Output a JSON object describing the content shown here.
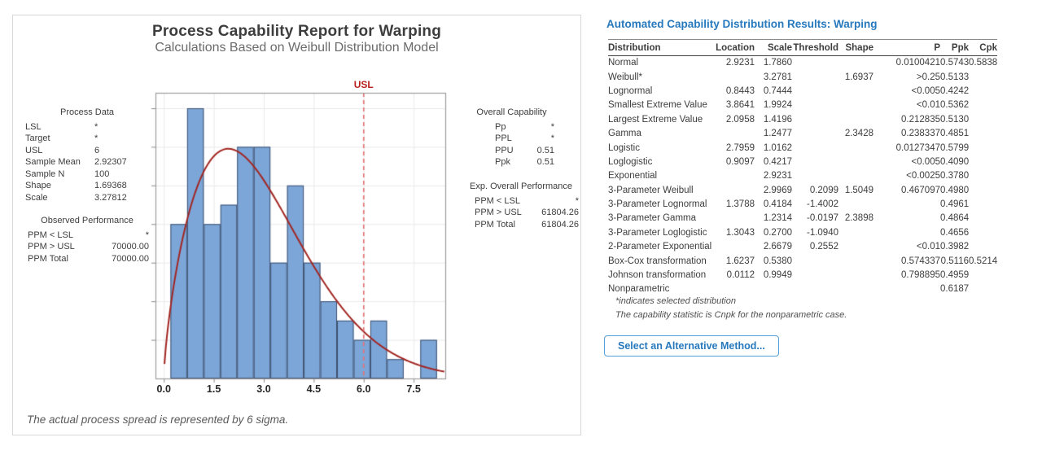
{
  "colors": {
    "accent_blue": "#2779bd",
    "button_border": "#55a0d8",
    "bar_fill": "#7ca6d8",
    "bar_edge": "#3f5170",
    "curve_red": "#a22622",
    "usl_line": "#e57070",
    "usl_text": "#b9211e",
    "grid": "#e9e9e9",
    "plot_border": "#9b9b9b",
    "tick": "#8a8a8a"
  },
  "left_panel": {
    "title": "Process Capability Report for Warping",
    "subtitle": "Calculations Based on Weibull Distribution Model",
    "footnote": "The actual process spread is represented by 6 sigma.",
    "process_data": {
      "header": "Process Data",
      "rows": [
        {
          "label": "LSL",
          "value": "*"
        },
        {
          "label": "Target",
          "value": "*"
        },
        {
          "label": "USL",
          "value": "6"
        },
        {
          "label": "Sample Mean",
          "value": "2.92307"
        },
        {
          "label": "Sample N",
          "value": "100"
        },
        {
          "label": "Shape",
          "value": "1.69368"
        },
        {
          "label": "Scale",
          "value": "3.27812"
        }
      ]
    },
    "observed_performance": {
      "header": "Observed Performance",
      "rows": [
        {
          "label": "PPM < LSL",
          "value": "*"
        },
        {
          "label": "PPM > USL",
          "value": "70000.00"
        },
        {
          "label": "PPM Total",
          "value": "70000.00"
        }
      ]
    },
    "overall_capability": {
      "header": "Overall Capability",
      "rows": [
        {
          "label": "Pp",
          "value": "*"
        },
        {
          "label": "PPL",
          "value": "*"
        },
        {
          "label": "PPU",
          "value": "0.51"
        },
        {
          "label": "Ppk",
          "value": "0.51"
        }
      ]
    },
    "exp_overall_performance": {
      "header": "Exp. Overall Performance",
      "rows": [
        {
          "label": "PPM < LSL",
          "value": "*"
        },
        {
          "label": "PPM > USL",
          "value": "61804.26"
        },
        {
          "label": "PPM Total",
          "value": "61804.26"
        }
      ]
    }
  },
  "chart_data": {
    "type": "bar",
    "subtype": "histogram-with-weibull-fit",
    "bins": {
      "start": 0.2,
      "width": 0.5
    },
    "counts": [
      8,
      14,
      8,
      9,
      12,
      12,
      6,
      10,
      6,
      4,
      3,
      2,
      3,
      1,
      0,
      2
    ],
    "fit_curve": {
      "distribution": "weibull",
      "shape": 1.69368,
      "scale": 3.27812,
      "scale_factor": 50
    },
    "usl": {
      "value": 6,
      "label": "USL"
    },
    "x_ticks": [
      0.0,
      1.5,
      3.0,
      4.5,
      6.0,
      7.5
    ],
    "xlim": [
      -0.25,
      8.45
    ],
    "ylim": [
      0,
      14.8
    ],
    "grid_step": 2,
    "xlabel": "",
    "ylabel": "",
    "legend": "none"
  },
  "results_panel": {
    "title": "Automated Capability Distribution Results: Warping",
    "table": {
      "columns": [
        "Distribution",
        "Location",
        "Scale",
        "Threshold",
        "Shape",
        "P",
        "Ppk",
        "Cpk"
      ],
      "rows": [
        {
          "distribution": "Normal",
          "location": "2.9231",
          "scale": "1.7860",
          "threshold": "",
          "shape": "",
          "p": "0.0100421",
          "ppk": "0.5743",
          "cpk": "0.5838"
        },
        {
          "distribution": "Weibull*",
          "location": "",
          "scale": "3.2781",
          "threshold": "",
          "shape": "1.6937",
          "p": ">0.25",
          "ppk": "0.5133",
          "cpk": ""
        },
        {
          "distribution": "Lognormal",
          "location": "0.8443",
          "scale": "0.7444",
          "threshold": "",
          "shape": "",
          "p": "<0.005",
          "ppk": "0.4242",
          "cpk": ""
        },
        {
          "distribution": "Smallest Extreme Value",
          "location": "3.8641",
          "scale": "1.9924",
          "threshold": "",
          "shape": "",
          "p": "<0.01",
          "ppk": "0.5362",
          "cpk": ""
        },
        {
          "distribution": "Largest Extreme Value",
          "location": "2.0958",
          "scale": "1.4196",
          "threshold": "",
          "shape": "",
          "p": "0.212835",
          "ppk": "0.5130",
          "cpk": ""
        },
        {
          "distribution": "Gamma",
          "location": "",
          "scale": "1.2477",
          "threshold": "",
          "shape": "2.3428",
          "p": "0.238337",
          "ppk": "0.4851",
          "cpk": ""
        },
        {
          "distribution": "Logistic",
          "location": "2.7959",
          "scale": "1.0162",
          "threshold": "",
          "shape": "",
          "p": "0.0127347",
          "ppk": "0.5799",
          "cpk": ""
        },
        {
          "distribution": "Loglogistic",
          "location": "0.9097",
          "scale": "0.4217",
          "threshold": "",
          "shape": "",
          "p": "<0.005",
          "ppk": "0.4090",
          "cpk": ""
        },
        {
          "distribution": "Exponential",
          "location": "",
          "scale": "2.9231",
          "threshold": "",
          "shape": "",
          "p": "<0.0025",
          "ppk": "0.3780",
          "cpk": ""
        },
        {
          "distribution": "3-Parameter Weibull",
          "location": "",
          "scale": "2.9969",
          "threshold": "0.2099",
          "shape": "1.5049",
          "p": "0.467097",
          "ppk": "0.4980",
          "cpk": ""
        },
        {
          "distribution": "3-Parameter Lognormal",
          "location": "1.3788",
          "scale": "0.4184",
          "threshold": "-1.4002",
          "shape": "",
          "p": "",
          "ppk": "0.4961",
          "cpk": ""
        },
        {
          "distribution": "3-Parameter Gamma",
          "location": "",
          "scale": "1.2314",
          "threshold": "-0.0197",
          "shape": "2.3898",
          "p": "",
          "ppk": "0.4864",
          "cpk": ""
        },
        {
          "distribution": "3-Parameter Loglogistic",
          "location": "1.3043",
          "scale": "0.2700",
          "threshold": "-1.0940",
          "shape": "",
          "p": "",
          "ppk": "0.4656",
          "cpk": ""
        },
        {
          "distribution": "2-Parameter Exponential",
          "location": "",
          "scale": "2.6679",
          "threshold": "0.2552",
          "shape": "",
          "p": "<0.01",
          "ppk": "0.3982",
          "cpk": ""
        },
        {
          "distribution": "Box-Cox transformation",
          "location": "1.6237",
          "scale": "0.5380",
          "threshold": "",
          "shape": "",
          "p": "0.574337",
          "ppk": "0.5116",
          "cpk": "0.5214"
        },
        {
          "distribution": "Johnson transformation",
          "location": "0.0112",
          "scale": "0.9949",
          "threshold": "",
          "shape": "",
          "p": "0.798895",
          "ppk": "0.4959",
          "cpk": ""
        },
        {
          "distribution": "Nonparametric",
          "location": "",
          "scale": "",
          "threshold": "",
          "shape": "",
          "p": "",
          "ppk": "0.6187",
          "cpk": ""
        }
      ]
    },
    "footnotes": [
      "*indicates selected distribution",
      "The capability statistic is Cnpk for the nonparametric case."
    ],
    "button_label": "Select an Alternative Method..."
  }
}
